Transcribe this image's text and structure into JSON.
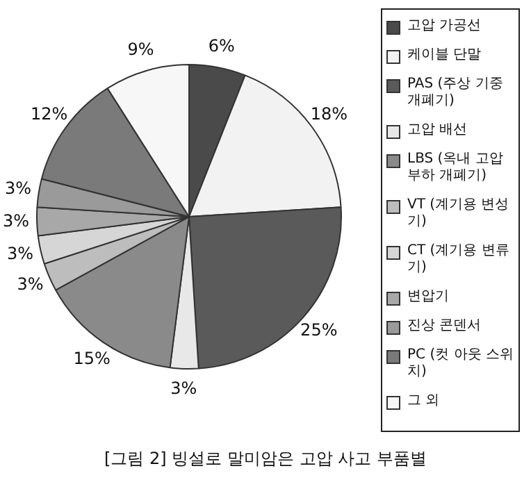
{
  "chart_data": {
    "type": "pie",
    "title": "[그림 2] 빙설로 말미암은 고압 사고 부품별",
    "categories": [
      "고압 가공선",
      "케이블 단말",
      "PAS (주상 기중 개폐기)",
      "고압 배선",
      "LBS (옥내 고압 부하 개폐기)",
      "VT (계기용 변성기)",
      "CT (계기용 변류기)",
      "변압기",
      "진상 콘덴서",
      "PC (컷 아웃 스위치)",
      "그 외"
    ],
    "values": [
      6,
      18,
      25,
      3,
      15,
      3,
      3,
      3,
      3,
      12,
      9
    ],
    "value_labels": [
      "6%",
      "18%",
      "25%",
      "3%",
      "15%",
      "3%",
      "3%",
      "3%",
      "3%",
      "12%",
      "9%"
    ],
    "colors": [
      "#4a4a4a",
      "#f2f2f2",
      "#5a5a5a",
      "#e8e8e8",
      "#8a8a8a",
      "#bdbdbd",
      "#d6d6d6",
      "#a8a8a8",
      "#9a9a9a",
      "#7a7a7a",
      "#f7f7f7"
    ],
    "legend": "right"
  }
}
